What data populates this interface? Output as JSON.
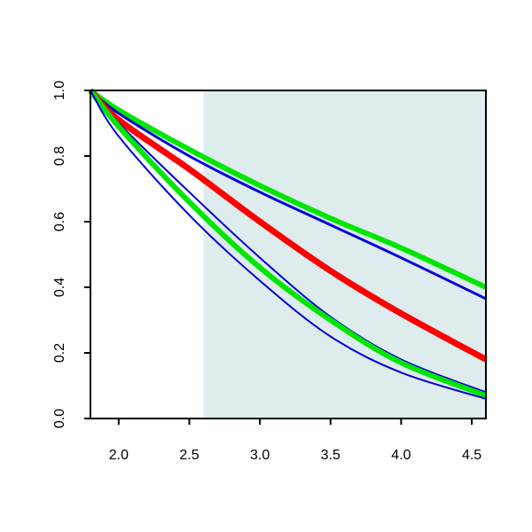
{
  "chart_data": {
    "type": "line",
    "title": "",
    "xlabel": "",
    "ylabel": "",
    "xlim": [
      1.8,
      4.6
    ],
    "ylim": [
      0.0,
      1.0
    ],
    "x_ticks": [
      2.0,
      2.5,
      3.0,
      3.5,
      4.0,
      4.5
    ],
    "x_tick_labels": [
      "2.0",
      "2.5",
      "3.0",
      "3.5",
      "4.0",
      "4.5"
    ],
    "y_ticks": [
      0.0,
      0.2,
      0.4,
      0.6,
      0.8,
      1.0
    ],
    "y_tick_labels": [
      "0.0",
      "0.2",
      "0.4",
      "0.6",
      "0.8",
      "1.0"
    ],
    "grid": false,
    "legend": "none",
    "shaded_region": {
      "x_from": 2.6,
      "x_to": 4.6,
      "color": "#dfeced"
    },
    "series": [
      {
        "color": "#00e600",
        "width": 6,
        "x": [
          1.8,
          2.0,
          2.5,
          3.0,
          3.5,
          4.0,
          4.6
        ],
        "y": [
          1.0,
          0.94,
          0.82,
          0.71,
          0.61,
          0.52,
          0.4
        ]
      },
      {
        "color": "#0000dd",
        "width": 3,
        "x": [
          1.8,
          2.0,
          2.5,
          3.0,
          3.5,
          4.0,
          4.6
        ],
        "y": [
          1.0,
          0.93,
          0.8,
          0.69,
          0.59,
          0.49,
          0.365
        ]
      },
      {
        "color": "#ff0000",
        "width": 7,
        "x": [
          1.8,
          2.0,
          2.5,
          3.0,
          3.5,
          4.0,
          4.6
        ],
        "y": [
          1.0,
          0.91,
          0.76,
          0.6,
          0.45,
          0.32,
          0.18
        ]
      },
      {
        "color": "#0000dd",
        "width": 2,
        "x": [
          1.8,
          2.0,
          2.5,
          3.0,
          3.5,
          4.0,
          4.6
        ],
        "y": [
          1.0,
          0.9,
          0.69,
          0.49,
          0.31,
          0.18,
          0.08
        ]
      },
      {
        "color": "#00e600",
        "width": 6,
        "x": [
          1.8,
          2.0,
          2.5,
          3.0,
          3.5,
          4.0,
          4.6
        ],
        "y": [
          1.0,
          0.89,
          0.66,
          0.46,
          0.3,
          0.17,
          0.07
        ]
      },
      {
        "color": "#0000dd",
        "width": 2,
        "x": [
          1.8,
          2.0,
          2.5,
          3.0,
          3.5,
          4.0,
          4.6
        ],
        "y": [
          1.0,
          0.86,
          0.62,
          0.42,
          0.25,
          0.14,
          0.06
        ]
      }
    ]
  }
}
